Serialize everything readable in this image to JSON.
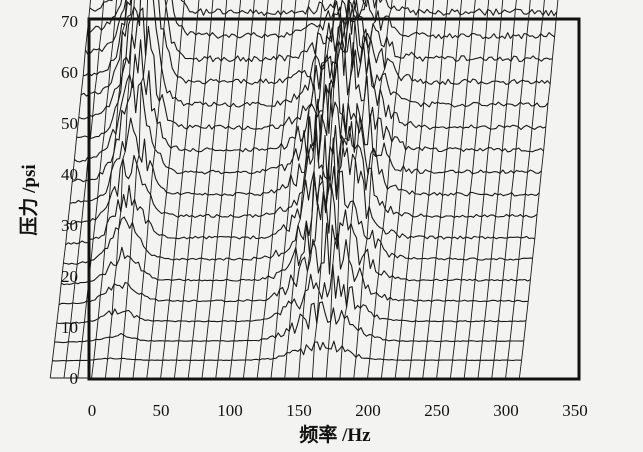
{
  "chart_data": {
    "type": "waterfall-3d",
    "xlabel": "频率 /Hz",
    "ylabel": "压力 /psi",
    "xlim": [
      0,
      350
    ],
    "ylim": [
      0,
      70
    ],
    "x_ticks": [
      0,
      50,
      100,
      150,
      200,
      250,
      300,
      350
    ],
    "y_ticks": [
      0,
      10,
      20,
      30,
      40,
      50,
      60,
      70
    ],
    "grid": false,
    "legend": "none",
    "trace_count": 20,
    "frequency_step_hz": 10,
    "peaks": [
      {
        "frequency_hz": 45,
        "peak_pressure_psi": 70,
        "baseline_pressure_psi": 28
      },
      {
        "frequency_hz": 195,
        "peak_pressure_psi": 36,
        "baseline_pressure_psi": 28
      }
    ],
    "plateau_pressure_psi": 28
  }
}
